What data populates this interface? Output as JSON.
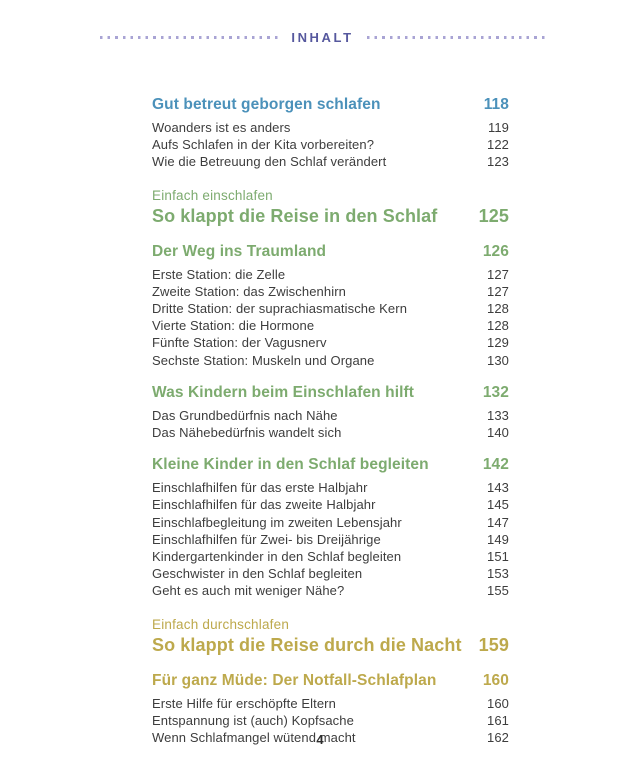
{
  "page": {
    "header": {
      "title": "INHALT"
    },
    "footer": {
      "page_number": "4"
    }
  },
  "colors": {
    "header_text": "#56589e",
    "header_dots": "#a9a4d4",
    "heading_blue": "#4b91ba",
    "heading_green": "#7dab6f",
    "heading_gold": "#bda94c",
    "body_text": "#3d3d3d",
    "footer_text": "#2e2e2e"
  },
  "toc": {
    "sections": [
      {
        "type": "heading",
        "color": "blue",
        "title": "Gut betreut geborgen schlafen",
        "page": "118",
        "items": [
          {
            "label": "Woanders ist es anders",
            "page": "119"
          },
          {
            "label": "Aufs Schlafen in der Kita vorbereiten?",
            "page": "122"
          },
          {
            "label": "Wie die Betreuung den Schlaf verändert",
            "page": "123"
          }
        ]
      },
      {
        "type": "part",
        "color": "green",
        "eyebrow": "Einfach einschlafen",
        "title": "So klappt die Reise in den Schlaf",
        "page": "125",
        "items": []
      },
      {
        "type": "heading",
        "color": "green",
        "title": "Der Weg ins Traumland",
        "page": "126",
        "items": [
          {
            "label": "Erste Station: die Zelle",
            "page": "127"
          },
          {
            "label": "Zweite Station: das Zwischenhirn",
            "page": "127"
          },
          {
            "label": "Dritte Station: der suprachiasmatische Kern",
            "page": "128"
          },
          {
            "label": "Vierte Station: die Hormone",
            "page": "128"
          },
          {
            "label": "Fünfte Station: der Vagusnerv",
            "page": "129"
          },
          {
            "label": "Sechste Station: Muskeln und Organe",
            "page": "130"
          }
        ]
      },
      {
        "type": "heading",
        "color": "green",
        "title": "Was Kindern beim Einschlafen hilft",
        "page": "132",
        "items": [
          {
            "label": "Das Grundbedürfnis nach Nähe",
            "page": "133"
          },
          {
            "label": "Das Nähebedürfnis wandelt sich",
            "page": "140"
          }
        ]
      },
      {
        "type": "heading",
        "color": "green",
        "title": "Kleine Kinder in den Schlaf begleiten",
        "page": "142",
        "items": [
          {
            "label": "Einschlafhilfen für das erste Halbjahr",
            "page": "143"
          },
          {
            "label": "Einschlafhilfen für das zweite Halbjahr",
            "page": "145"
          },
          {
            "label": "Einschlafbegleitung im zweiten Lebensjahr",
            "page": "147"
          },
          {
            "label": "Einschlafhilfen für Zwei- bis Dreijährige",
            "page": "149"
          },
          {
            "label": "Kindergartenkinder in den Schlaf begleiten",
            "page": "151"
          },
          {
            "label": "Geschwister in den Schlaf begleiten",
            "page": "153"
          },
          {
            "label": "Geht es auch mit weniger Nähe?",
            "page": "155"
          }
        ]
      },
      {
        "type": "part",
        "color": "gold",
        "eyebrow": "Einfach durchschlafen",
        "title": "So klappt die Reise durch die Nacht",
        "page": "159",
        "items": []
      },
      {
        "type": "heading",
        "color": "gold",
        "title": "Für ganz Müde: Der Notfall-Schlafplan",
        "page": "160",
        "items": [
          {
            "label": "Erste Hilfe für erschöpfte Eltern",
            "page": "160"
          },
          {
            "label": "Entspannung ist (auch) Kopfsache",
            "page": "161"
          },
          {
            "label": "Wenn Schlafmangel wütend macht",
            "page": "162"
          }
        ]
      }
    ]
  }
}
